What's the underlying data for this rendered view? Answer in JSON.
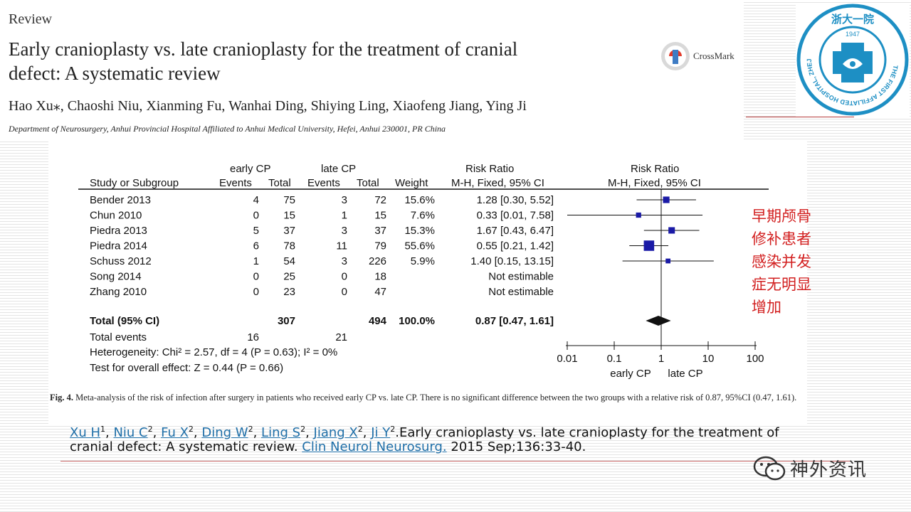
{
  "header": {
    "section_label": "Review",
    "title": "Early cranioplasty vs. late cranioplasty for the treatment of cranial defect: A systematic review",
    "authors": "Hao Xu⁎, Chaoshi Niu, Xianming Fu, Wanhai Ding, Shiying Ling, Xiaofeng Jiang, Ying Ji",
    "affiliation": "Department of Neurosurgery, Anhui Provincial Hospital Affiliated to Anhui Medical University, Hefei, Anhui 230001, PR China",
    "crossmark_label": "CrossMark"
  },
  "forest_plot": {
    "group_headers": {
      "early": "early CP",
      "late": "late CP",
      "risk_ratio": "Risk Ratio",
      "risk_ratio_plot": "Risk Ratio"
    },
    "column_headers": {
      "study": "Study or Subgroup",
      "events1": "Events",
      "total1": "Total",
      "events2": "Events",
      "total2": "Total",
      "weight": "Weight",
      "method": "M-H, Fixed, 95% CI",
      "method_plot": "M-H, Fixed, 95% CI"
    },
    "studies": [
      {
        "name": "Bender 2013",
        "e1": "4",
        "t1": "75",
        "e2": "3",
        "t2": "72",
        "weight": "15.6%",
        "rr_text": "1.28 [0.30, 5.52]",
        "rr": 1.28,
        "lo": 0.3,
        "hi": 5.52,
        "w": 15.6
      },
      {
        "name": "Chun 2010",
        "e1": "0",
        "t1": "15",
        "e2": "1",
        "t2": "15",
        "weight": "7.6%",
        "rr_text": "0.33 [0.01, 7.58]",
        "rr": 0.33,
        "lo": 0.01,
        "hi": 7.58,
        "w": 7.6
      },
      {
        "name": "Piedra 2013",
        "e1": "5",
        "t1": "37",
        "e2": "3",
        "t2": "37",
        "weight": "15.3%",
        "rr_text": "1.67 [0.43, 6.47]",
        "rr": 1.67,
        "lo": 0.43,
        "hi": 6.47,
        "w": 15.3
      },
      {
        "name": "Piedra 2014",
        "e1": "6",
        "t1": "78",
        "e2": "11",
        "t2": "79",
        "weight": "55.6%",
        "rr_text": "0.55 [0.21, 1.42]",
        "rr": 0.55,
        "lo": 0.21,
        "hi": 1.42,
        "w": 55.6
      },
      {
        "name": "Schuss 2012",
        "e1": "1",
        "t1": "54",
        "e2": "3",
        "t2": "226",
        "weight": "5.9%",
        "rr_text": "1.40 [0.15, 13.15]",
        "rr": 1.4,
        "lo": 0.15,
        "hi": 13.15,
        "w": 5.9
      },
      {
        "name": "Song 2014",
        "e1": "0",
        "t1": "25",
        "e2": "0",
        "t2": "18",
        "weight": "",
        "rr_text": "Not estimable",
        "rr": null,
        "lo": null,
        "hi": null,
        "w": 0
      },
      {
        "name": "Zhang 2010",
        "e1": "0",
        "t1": "23",
        "e2": "0",
        "t2": "47",
        "weight": "",
        "rr_text": "Not estimable",
        "rr": null,
        "lo": null,
        "hi": null,
        "w": 0
      }
    ],
    "total": {
      "label": "Total (95% CI)",
      "t1": "307",
      "t2": "494",
      "weight": "100.0%",
      "rr_text": "0.87 [0.47, 1.61]",
      "rr": 0.87,
      "lo": 0.47,
      "hi": 1.61
    },
    "total_events": {
      "label": "Total events",
      "e1": "16",
      "e2": "21"
    },
    "heterogeneity": "Heterogeneity: Chi² = 2.57, df = 4 (P = 0.63); I² = 0%",
    "overall_effect": "Test for overall effect: Z = 0.44 (P = 0.66)",
    "axis": {
      "ticks": [
        "0.01",
        "0.1",
        "1",
        "10",
        "100"
      ],
      "tick_values": [
        0.01,
        0.1,
        1,
        10,
        100
      ],
      "favours_left": "early CP",
      "favours_right": "late CP"
    }
  },
  "chart_data": {
    "type": "scatter",
    "title": "Risk Ratio M-H, Fixed, 95% CI",
    "xlabel": "early CP  late CP",
    "xscale": "log",
    "xlim": [
      0.01,
      100
    ],
    "categories": [
      "Bender 2013",
      "Chun 2010",
      "Piedra 2013",
      "Piedra 2014",
      "Schuss 2012",
      "Total (95% CI)"
    ],
    "values": [
      1.28,
      0.33,
      1.67,
      0.55,
      1.4,
      0.87
    ],
    "ci_low": [
      0.3,
      0.01,
      0.43,
      0.21,
      0.15,
      0.47
    ],
    "ci_high": [
      5.52,
      7.58,
      6.47,
      1.42,
      13.15,
      1.61
    ],
    "weights": [
      15.6,
      7.6,
      15.3,
      55.6,
      5.9,
      100.0
    ]
  },
  "caption": {
    "label": "Fig. 4.",
    "text": "Meta-analysis of the risk of infection after surgery in patients who received early CP vs. late CP. There is no significant difference between the two groups with a relative risk of 0.87, 95%CI (0.47, 1.61)."
  },
  "annotation_cn": "早期颅骨修补患者感染并发症无明显增加",
  "logo": {
    "text_cn": "浙大一院",
    "year": "1947",
    "ring_text": "THE FIRST AFFILIATED HOSPITAL, ZHEJIANG UNIVERSITY"
  },
  "citation": {
    "authors": [
      {
        "name": "Xu H",
        "sup": "1"
      },
      {
        "name": "Niu C",
        "sup": "2"
      },
      {
        "name": "Fu X",
        "sup": "2"
      },
      {
        "name": "Ding W",
        "sup": "2"
      },
      {
        "name": "Ling S",
        "sup": "2"
      },
      {
        "name": "Jiang X",
        "sup": "2"
      },
      {
        "name": "Ji Y",
        "sup": "2"
      }
    ],
    "title_text": ".Early cranioplasty vs. late cranioplasty for the treatment of cranial defect: A systematic review. ",
    "journal": "Clin Neurol Neurosurg.",
    "details": " 2015 Sep;136:33-40."
  },
  "watermark": {
    "label": "神外资讯"
  },
  "colors": {
    "accent_red": "#d21f1f",
    "link_blue": "#1f6fa8",
    "marker_blue": "#1a1aa6",
    "logo_blue": "#1d8fc4"
  }
}
